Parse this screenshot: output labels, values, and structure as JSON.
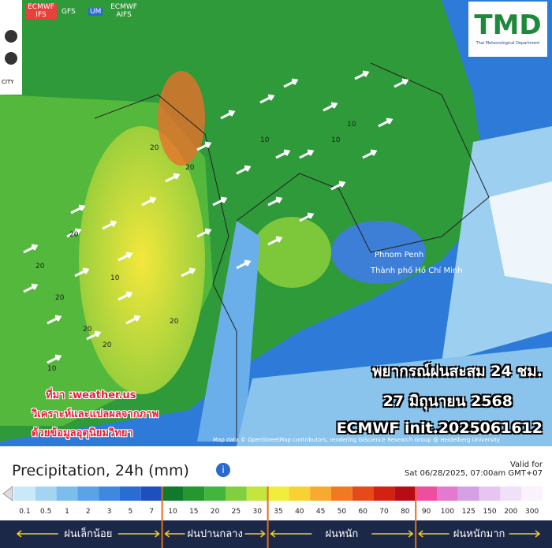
{
  "toolbar": {
    "models": [
      "ECMWF IFS",
      "GFS",
      "UM",
      "ECMWF AIFS"
    ],
    "city": "CITY"
  },
  "logo": {
    "title": "TMD",
    "subtitle": "Thai Meteorological Department"
  },
  "map": {
    "places": [
      "Phnom Penh",
      "Thành phố Hồ Chí Minh"
    ],
    "contour_labels": [
      "20",
      "20",
      "20",
      "10",
      "20",
      "20",
      "20",
      "10",
      "20",
      "10",
      "10",
      "10",
      "20"
    ],
    "attribution": "Map data © OpenStreetMap contributors, rendering GIScience Research Group @ Heidelberg University"
  },
  "overlay": {
    "title": "พยากรณ์ฝนสะสม 24 ชม.",
    "date": "27 มิถุนายน 2568",
    "model": "ECMWF init.2025061612"
  },
  "credit": {
    "source": "ที่มา :weather.us",
    "line1": "วิเคราะห์และแปลผลจากภาพ",
    "line2": "ด้วยข้อมูลอุตุนิยมวิทยา"
  },
  "legend": {
    "title": "Precipitation, 24h (mm)",
    "valid_label": "Valid for",
    "valid_time": "Sat 06/28/2025, 07:00am GMT+07",
    "scale": [
      0.1,
      0.5,
      1,
      2,
      3,
      5,
      7,
      10,
      15,
      20,
      25,
      30,
      35,
      40,
      45,
      50,
      60,
      70,
      80,
      90,
      100,
      125,
      150,
      200,
      300
    ],
    "colors": [
      "#c9e9f8",
      "#a3d4f2",
      "#7cbdec",
      "#5aa3e6",
      "#3e88de",
      "#2a6cd2",
      "#1e4fbf",
      "#0f7a2c",
      "#22982e",
      "#41b53c",
      "#80d03e",
      "#c4e43e",
      "#f0ee3c",
      "#f8d232",
      "#f7aa2e",
      "#f07a22",
      "#e44a1a",
      "#d42212",
      "#b80c14",
      "#ee4e9e",
      "#e47ace",
      "#d6a0e6",
      "#e6c6f0",
      "#f0e0f8",
      "#faf2fd"
    ],
    "categories": [
      "ฝนเล็กน้อย",
      "ฝนปานกลาง",
      "ฝนหนัก",
      "ฝนหนักมาก"
    ]
  }
}
